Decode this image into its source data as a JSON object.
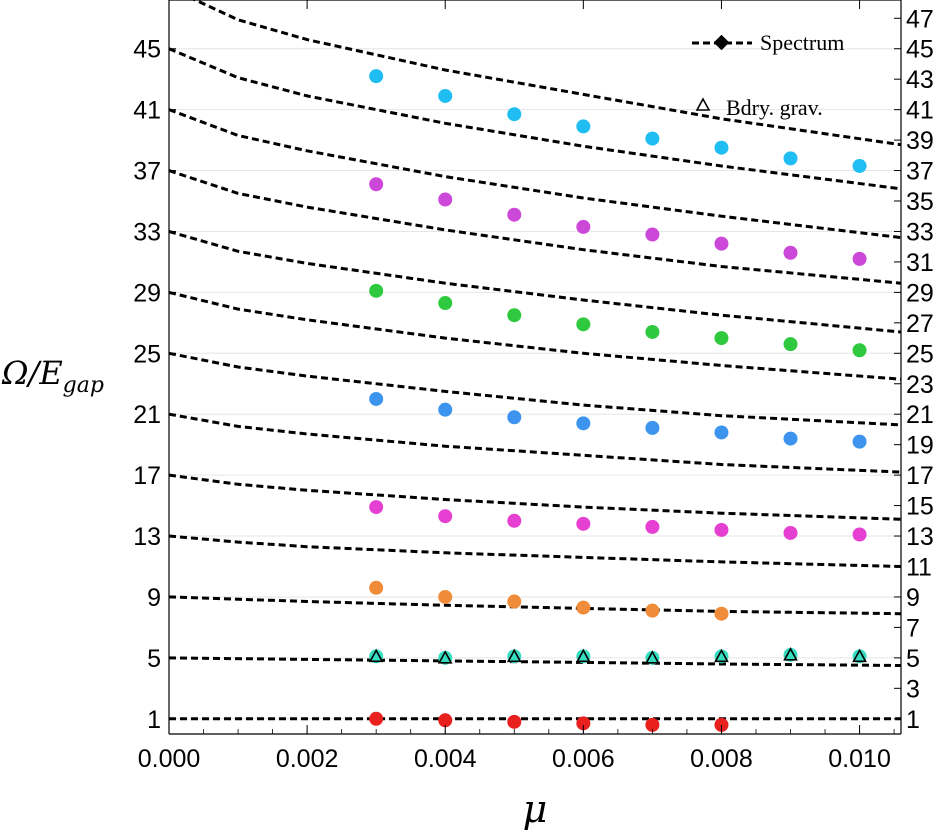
{
  "chart_data": {
    "type": "scatter",
    "title": "",
    "xlabel": "μ",
    "ylabel_main": "Ω/E",
    "ylabel_sub": "gap",
    "xlim": [
      0.0,
      0.0106
    ],
    "ylim": [
      0.0,
      48.2
    ],
    "x_ticks": [
      0.0,
      0.002,
      0.004,
      0.006,
      0.008,
      0.01
    ],
    "x_tick_labels": [
      "0.000",
      "0.002",
      "0.004",
      "0.006",
      "0.008",
      "0.010"
    ],
    "y_ticks_left": [
      1,
      5,
      9,
      13,
      17,
      21,
      25,
      29,
      33,
      37,
      41,
      45
    ],
    "y_ticks_right": [
      1,
      3,
      5,
      7,
      9,
      11,
      13,
      15,
      17,
      19,
      21,
      23,
      25,
      27,
      29,
      31,
      33,
      35,
      37,
      39,
      41,
      43,
      45,
      47
    ],
    "grid": "horizontal at left tick values",
    "legend": {
      "position": "top-right",
      "entries": [
        {
          "label": "Spectrum",
          "marker": "dashed-line-diamond"
        },
        {
          "label": "Bdry. grav.",
          "marker": "triangle"
        }
      ]
    },
    "spectrum_curves": [
      {
        "name": "n1",
        "x": [
          0.0,
          0.0106
        ],
        "y": [
          1.0,
          1.0
        ]
      },
      {
        "name": "n2",
        "x": [
          0.0,
          0.002,
          0.004,
          0.006,
          0.008,
          0.0106
        ],
        "y": [
          5.0,
          4.9,
          4.8,
          4.7,
          4.6,
          4.5
        ]
      },
      {
        "name": "n3",
        "x": [
          0.0,
          0.002,
          0.004,
          0.006,
          0.008,
          0.0106
        ],
        "y": [
          9.0,
          8.7,
          8.45,
          8.25,
          8.05,
          7.9
        ]
      },
      {
        "name": "n4",
        "x": [
          0.0,
          0.001,
          0.002,
          0.004,
          0.006,
          0.008,
          0.0106
        ],
        "y": [
          13.0,
          12.6,
          12.3,
          11.9,
          11.6,
          11.3,
          11.0
        ]
      },
      {
        "name": "n5",
        "x": [
          0.0,
          0.001,
          0.002,
          0.004,
          0.006,
          0.008,
          0.0106
        ],
        "y": [
          17.0,
          16.4,
          16.0,
          15.4,
          14.9,
          14.5,
          14.1
        ]
      },
      {
        "name": "n6",
        "x": [
          0.0,
          0.001,
          0.002,
          0.004,
          0.006,
          0.008,
          0.0106
        ],
        "y": [
          21.0,
          20.2,
          19.7,
          18.9,
          18.3,
          17.7,
          17.2
        ]
      },
      {
        "name": "n7",
        "x": [
          0.0,
          0.001,
          0.002,
          0.004,
          0.006,
          0.008,
          0.0106
        ],
        "y": [
          25.0,
          24.1,
          23.5,
          22.5,
          21.6,
          20.9,
          20.3
        ]
      },
      {
        "name": "n8",
        "x": [
          0.0,
          0.001,
          0.002,
          0.004,
          0.006,
          0.008,
          0.0106
        ],
        "y": [
          29.0,
          27.9,
          27.2,
          26.0,
          25.0,
          24.2,
          23.3
        ]
      },
      {
        "name": "n9",
        "x": [
          0.0,
          0.001,
          0.002,
          0.004,
          0.006,
          0.008,
          0.0106
        ],
        "y": [
          33.0,
          31.7,
          30.9,
          29.6,
          28.5,
          27.5,
          26.4
        ]
      },
      {
        "name": "n10",
        "x": [
          0.0,
          0.001,
          0.002,
          0.004,
          0.006,
          0.008,
          0.0106
        ],
        "y": [
          37.0,
          35.5,
          34.6,
          33.1,
          31.8,
          30.7,
          29.6
        ]
      },
      {
        "name": "n11",
        "x": [
          0.0,
          0.001,
          0.002,
          0.004,
          0.006,
          0.008,
          0.0106
        ],
        "y": [
          41.0,
          39.3,
          38.3,
          36.6,
          35.2,
          34.0,
          32.6
        ]
      },
      {
        "name": "n12",
        "x": [
          0.0,
          0.001,
          0.002,
          0.004,
          0.006,
          0.008,
          0.0106
        ],
        "y": [
          45.0,
          43.1,
          41.9,
          40.1,
          38.6,
          37.3,
          35.8
        ]
      },
      {
        "name": "n13",
        "x": [
          0.0,
          0.001,
          0.002,
          0.004,
          0.006,
          0.008,
          0.0106
        ],
        "y": [
          49.0,
          46.9,
          45.6,
          43.6,
          42.0,
          40.4,
          38.7
        ]
      }
    ],
    "series": [
      {
        "name": "red",
        "color": "#e8201e",
        "x": [
          0.003,
          0.004,
          0.005,
          0.006,
          0.007,
          0.008
        ],
        "y": [
          1.0,
          0.9,
          0.8,
          0.7,
          0.6,
          0.6
        ]
      },
      {
        "name": "cyan",
        "color": "#36ddc1",
        "x": [
          0.003,
          0.004,
          0.005,
          0.006,
          0.007,
          0.008,
          0.009,
          0.01
        ],
        "y": [
          5.1,
          5.0,
          5.1,
          5.1,
          5.0,
          5.1,
          5.2,
          5.1
        ]
      },
      {
        "name": "orange",
        "color": "#f08c39",
        "x": [
          0.003,
          0.004,
          0.005,
          0.006,
          0.007,
          0.008
        ],
        "y": [
          9.6,
          9.0,
          8.7,
          8.3,
          8.1,
          7.9
        ]
      },
      {
        "name": "magenta",
        "color": "#e540d2",
        "x": [
          0.003,
          0.004,
          0.005,
          0.006,
          0.007,
          0.008,
          0.009,
          0.01
        ],
        "y": [
          14.9,
          14.3,
          14.0,
          13.8,
          13.6,
          13.4,
          13.2,
          13.1
        ]
      },
      {
        "name": "blue",
        "color": "#3d94ee",
        "x": [
          0.003,
          0.004,
          0.005,
          0.006,
          0.007,
          0.008,
          0.009,
          0.01
        ],
        "y": [
          22.0,
          21.3,
          20.8,
          20.4,
          20.1,
          19.8,
          19.4,
          19.2
        ]
      },
      {
        "name": "green",
        "color": "#2fc93f",
        "x": [
          0.003,
          0.004,
          0.005,
          0.006,
          0.007,
          0.008,
          0.009,
          0.01
        ],
        "y": [
          29.1,
          28.3,
          27.5,
          26.9,
          26.4,
          26.0,
          25.6,
          25.2
        ]
      },
      {
        "name": "purple",
        "color": "#cc48d8",
        "x": [
          0.003,
          0.004,
          0.005,
          0.006,
          0.007,
          0.008,
          0.009,
          0.01
        ],
        "y": [
          36.1,
          35.1,
          34.1,
          33.3,
          32.8,
          32.2,
          31.6,
          31.2
        ]
      },
      {
        "name": "sky",
        "color": "#1fbdf2",
        "x": [
          0.003,
          0.004,
          0.005,
          0.006,
          0.007,
          0.008,
          0.009,
          0.01
        ],
        "y": [
          43.2,
          41.9,
          40.7,
          39.9,
          39.1,
          38.5,
          37.8,
          37.3
        ]
      }
    ],
    "boundary_graviton": {
      "marker": "triangle",
      "x": [
        0.003,
        0.004,
        0.005,
        0.006,
        0.007,
        0.008,
        0.009,
        0.01
      ],
      "y": [
        5.1,
        5.0,
        5.1,
        5.1,
        5.0,
        5.1,
        5.2,
        5.1
      ]
    }
  }
}
